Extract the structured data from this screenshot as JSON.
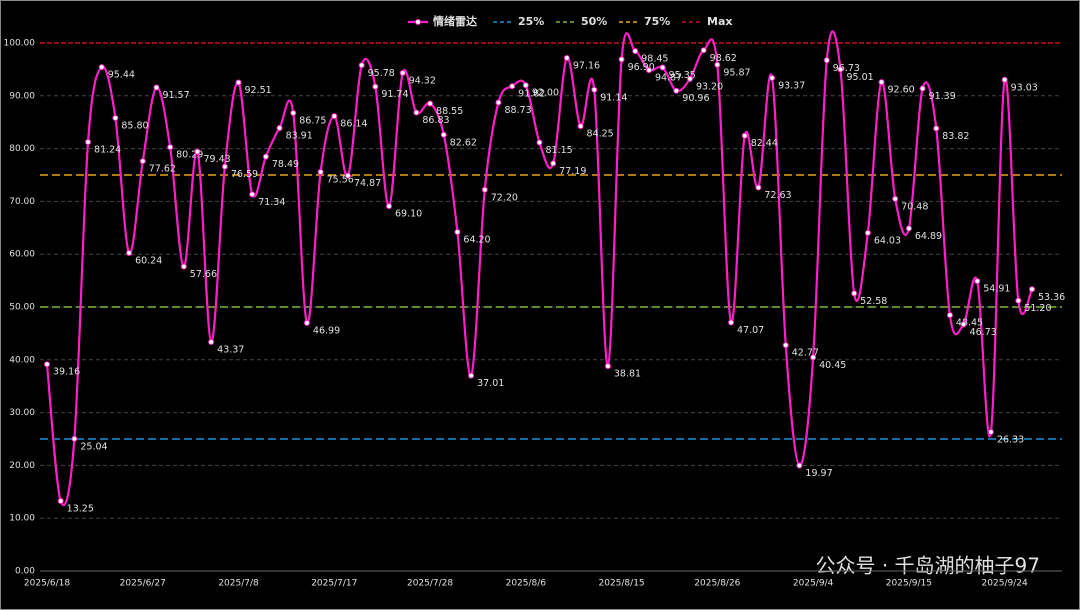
{
  "chart_data": {
    "type": "line",
    "categories": [
      "2025/6/18",
      null,
      null,
      null,
      null,
      null,
      null,
      "2025/6/27",
      null,
      null,
      null,
      null,
      null,
      null,
      "2025/7/8",
      null,
      null,
      null,
      null,
      null,
      null,
      "2025/7/17",
      null,
      null,
      null,
      null,
      null,
      null,
      "2025/7/28",
      null,
      null,
      null,
      null,
      null,
      null,
      "2025/8/6",
      null,
      null,
      null,
      null,
      null,
      null,
      "2025/8/15",
      null,
      null,
      null,
      null,
      null,
      null,
      "2025/8/26",
      null,
      null,
      null,
      null,
      null,
      null,
      "2025/9/4",
      null,
      null,
      null,
      null,
      null,
      null,
      "2025/9/15",
      null,
      null,
      null,
      null,
      null,
      null,
      "2025/9/24",
      null,
      null
    ],
    "series": [
      {
        "name": "情绪雷达",
        "color": "#ff1fc8",
        "values": [
          39.16,
          13.25,
          25.04,
          81.24,
          95.44,
          85.8,
          60.24,
          77.62,
          91.57,
          80.29,
          57.66,
          79.43,
          43.37,
          76.59,
          92.51,
          71.34,
          78.49,
          83.91,
          86.75,
          46.99,
          75.56,
          86.14,
          74.87,
          95.78,
          91.74,
          69.1,
          94.32,
          86.83,
          88.55,
          82.62,
          64.2,
          37.01,
          72.2,
          88.73,
          91.82,
          92.0,
          81.15,
          77.19,
          97.16,
          84.25,
          91.14,
          38.81,
          96.9,
          98.45,
          94.87,
          95.35,
          90.96,
          93.2,
          98.62,
          95.87,
          47.07,
          82.44,
          72.63,
          93.37,
          42.77,
          19.97,
          40.45,
          96.73,
          95.01,
          52.58,
          64.03,
          92.6,
          70.48,
          64.89,
          91.39,
          83.82,
          48.45,
          46.73,
          54.91,
          26.33,
          93.03,
          51.2,
          53.36
        ],
        "value_labels": [
          "39.16",
          "13.25",
          "25.04",
          "81.24",
          "95.44",
          "85.80",
          "60.24",
          "77.62",
          "91.57",
          "80.29",
          "57.66",
          "79.43",
          "43.37",
          "76.59",
          "92.51",
          "71.34",
          "78.49",
          "83.91",
          "86.75",
          "46.99",
          "75.56",
          "86.14",
          "74.87",
          "95.78",
          "91.74",
          "69.10",
          "94.32",
          "86.83",
          "88.55",
          "82.62",
          "64.20",
          "37.01",
          "72.20",
          "88.73",
          "91.82",
          "92.00",
          "81.15",
          "77.19",
          "97.16",
          "84.25",
          "91.14",
          "38.81",
          "96.90",
          "98.45",
          "94.87",
          "95.35",
          "90.96",
          "93.20",
          "98.62",
          "95.87",
          "47.07",
          "82.44",
          "72.63",
          "93.37",
          "42.77",
          "19.97",
          "40.45",
          "96.73",
          "95.01",
          "52.58",
          "64.03",
          "92.60",
          "70.48",
          "64.89",
          "91.39",
          "83.82",
          "48.45",
          "46.73",
          "54.91",
          "26.33",
          "93.03",
          "51.20",
          "53.36"
        ]
      }
    ],
    "reference_lines": [
      {
        "name": "25%",
        "value": 25,
        "color": "#1f8fd8"
      },
      {
        "name": "50%",
        "value": 50,
        "color": "#7fb838"
      },
      {
        "name": "75%",
        "value": 75,
        "color": "#e8a317"
      },
      {
        "name": "Max",
        "value": 100,
        "color": "#c0171b"
      }
    ],
    "ylim": [
      0,
      100
    ],
    "yticks": [
      {
        "value": 0,
        "label": "0.00"
      },
      {
        "value": 10,
        "label": "10.00"
      },
      {
        "value": 20,
        "label": "20.00"
      },
      {
        "value": 30,
        "label": "30.00"
      },
      {
        "value": 40,
        "label": "40.00"
      },
      {
        "value": 50,
        "label": "50.00"
      },
      {
        "value": 60,
        "label": "60.00"
      },
      {
        "value": 70,
        "label": "70.00"
      },
      {
        "value": 80,
        "label": "80.00"
      },
      {
        "value": 90,
        "label": "90.00"
      },
      {
        "value": 100,
        "label": "100.00"
      }
    ],
    "grid": true,
    "legend": "top",
    "watermark": "公众号 · 千岛湖的柚子97"
  }
}
